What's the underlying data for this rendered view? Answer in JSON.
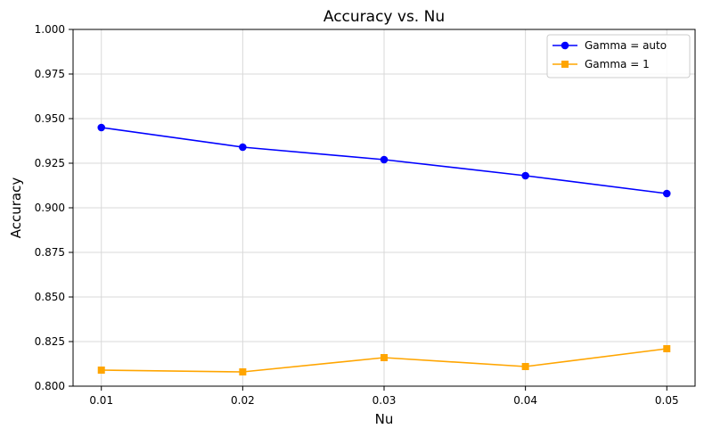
{
  "chart_data": {
    "type": "line",
    "title": "Accuracy vs. Nu",
    "xlabel": "Nu",
    "ylabel": "Accuracy",
    "x": [
      0.01,
      0.02,
      0.03,
      0.04,
      0.05
    ],
    "x_tick_labels": [
      "0.01",
      "0.02",
      "0.03",
      "0.04",
      "0.05"
    ],
    "ylim": [
      0.8,
      1.0
    ],
    "y_ticks": [
      0.8,
      0.825,
      0.85,
      0.875,
      0.9,
      0.925,
      0.95,
      0.975,
      1.0
    ],
    "y_tick_labels": [
      "0.800",
      "0.825",
      "0.850",
      "0.875",
      "0.900",
      "0.925",
      "0.950",
      "0.975",
      "1.000"
    ],
    "grid": true,
    "legend_position": "top-right",
    "series": [
      {
        "name": "Gamma = auto",
        "color": "#0000ff",
        "marker": "circle",
        "values": [
          0.945,
          0.934,
          0.927,
          0.918,
          0.908
        ]
      },
      {
        "name": "Gamma = 1",
        "color": "#ffa500",
        "marker": "square",
        "values": [
          0.809,
          0.808,
          0.816,
          0.811,
          0.821
        ]
      }
    ]
  }
}
